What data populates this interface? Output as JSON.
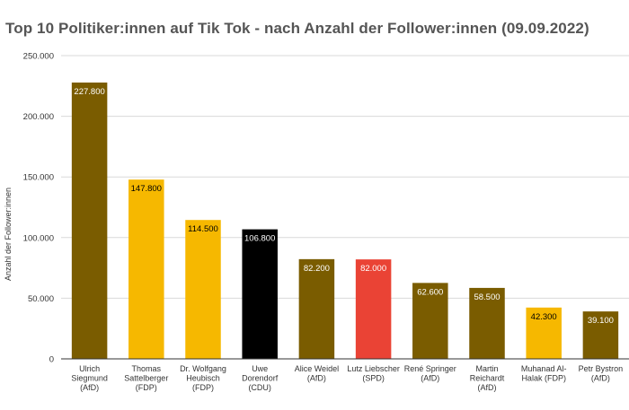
{
  "chart_data": {
    "type": "bar",
    "title": "Top 10 Politiker:innen auf Tik Tok - nach Anzahl der Follower:innen (09.09.2022)",
    "xlabel": "",
    "ylabel": "Anzahl der Follower:innen",
    "ylim": [
      0,
      250000
    ],
    "yticks": [
      0,
      50000,
      100000,
      150000,
      200000,
      250000
    ],
    "ytick_labels": [
      "0",
      "50.000",
      "100.000",
      "150.000",
      "200.000",
      "250.000"
    ],
    "grid": true,
    "categories": [
      [
        "Ulrich",
        "Siegmund",
        "(AfD)"
      ],
      [
        "Thomas",
        "Sattelberger",
        "(FDP)"
      ],
      [
        "Dr. Wolfgang",
        "Heubisch",
        "(FDP)"
      ],
      [
        "Uwe",
        "Dorendorf",
        "(CDU)"
      ],
      [
        "Alice Weidel",
        "(AfD)"
      ],
      [
        "Lutz Liebscher",
        "(SPD)"
      ],
      [
        "René Springer",
        "(AfD)"
      ],
      [
        "Martin",
        "Reichardt",
        "(AfD)"
      ],
      [
        "Muhanad Al-",
        "Halak (FDP)"
      ],
      [
        "Petr Bystron",
        "(AfD)"
      ]
    ],
    "values": [
      227800,
      147800,
      114500,
      106800,
      82200,
      82000,
      62600,
      58500,
      42300,
      39100
    ],
    "value_labels": [
      "227.800",
      "147.800",
      "114.500",
      "106.800",
      "82.200",
      "82.000",
      "62.600",
      "58.500",
      "42.300",
      "39.100"
    ],
    "colors": [
      "#7a5c00",
      "#f6b800",
      "#f6b800",
      "#000000",
      "#7a5c00",
      "#ea4335",
      "#7a5c00",
      "#7a5c00",
      "#f6b800",
      "#7a5c00"
    ],
    "label_colors": [
      "#ffffff",
      "#000000",
      "#000000",
      "#ffffff",
      "#ffffff",
      "#ffffff",
      "#ffffff",
      "#ffffff",
      "#000000",
      "#ffffff"
    ]
  },
  "style": {
    "grid_color": "#d9d9d9",
    "axis_color": "#333333",
    "title_color": "#555555"
  }
}
